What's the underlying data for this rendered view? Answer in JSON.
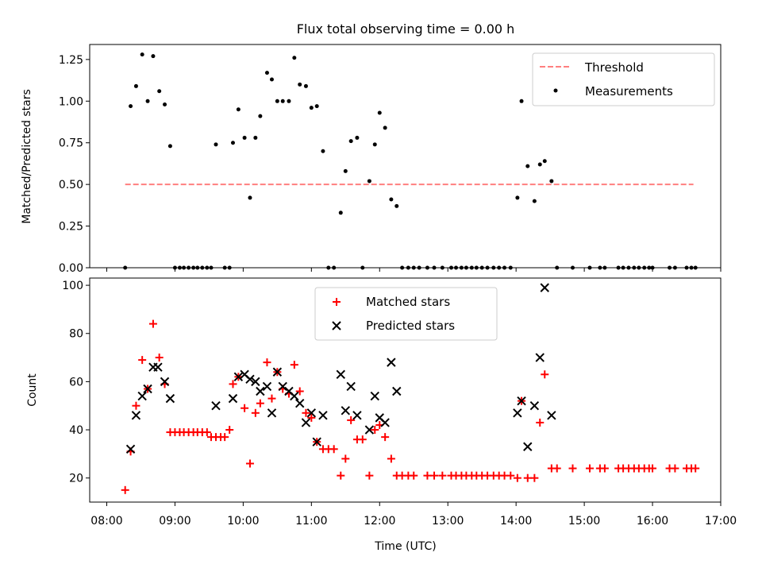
{
  "chart_data": [
    {
      "type": "scatter",
      "title": "Flux total observing time = 0.00 h",
      "xlabel": "",
      "ylabel": "Matched/Predicted stars",
      "xlim": [
        7.75,
        17.0
      ],
      "ylim": [
        0.0,
        1.34
      ],
      "yticks": [
        0.0,
        0.25,
        0.5,
        0.75,
        1.0,
        1.25
      ],
      "ytick_labels": [
        "0.00",
        "0.25",
        "0.50",
        "0.75",
        "1.00",
        "1.25"
      ],
      "legend": {
        "position": "top-right",
        "threshold_label": "Threshold",
        "measurements_label": "Measurements"
      },
      "threshold": {
        "value": 0.5,
        "x_range": [
          8.27,
          16.6
        ],
        "color": "#ff7f7f"
      },
      "series": [
        {
          "name": "Measurements",
          "x": [
            8.27,
            8.35,
            8.43,
            8.52,
            8.6,
            8.68,
            8.77,
            8.85,
            8.93,
            9.0,
            9.07,
            9.13,
            9.2,
            9.27,
            9.33,
            9.4,
            9.47,
            9.53,
            9.6,
            9.73,
            9.8,
            9.85,
            9.93,
            10.02,
            10.1,
            10.18,
            10.25,
            10.35,
            10.42,
            10.5,
            10.58,
            10.67,
            10.75,
            10.83,
            10.92,
            11.0,
            11.08,
            11.17,
            11.25,
            11.33,
            11.43,
            11.5,
            11.58,
            11.67,
            11.75,
            11.85,
            11.93,
            12.0,
            12.08,
            12.17,
            12.25,
            12.33,
            12.42,
            12.5,
            12.58,
            12.7,
            12.8,
            12.92,
            13.05,
            13.12,
            13.2,
            13.27,
            13.35,
            13.42,
            13.5,
            13.58,
            13.67,
            13.75,
            13.83,
            13.92,
            14.02,
            14.08,
            14.17,
            14.27,
            14.35,
            14.42,
            14.52,
            14.6,
            14.83,
            15.08,
            15.23,
            15.3,
            15.5,
            15.57,
            15.65,
            15.73,
            15.8,
            15.88,
            15.95,
            16.0,
            16.25,
            16.33,
            16.5,
            16.57,
            16.63
          ],
          "y": [
            0.0,
            0.97,
            1.09,
            1.28,
            1.0,
            1.27,
            1.06,
            0.98,
            0.73,
            0.0,
            0.0,
            0.0,
            0.0,
            0.0,
            0.0,
            0.0,
            0.0,
            0.0,
            0.74,
            0.0,
            0.0,
            0.75,
            0.95,
            0.78,
            0.42,
            0.78,
            0.91,
            1.17,
            1.13,
            1.0,
            1.0,
            1.0,
            1.26,
            1.1,
            1.09,
            0.96,
            0.97,
            0.7,
            0.0,
            0.0,
            0.33,
            0.58,
            0.76,
            0.78,
            0.0,
            0.52,
            0.74,
            0.93,
            0.84,
            0.41,
            0.37,
            0.0,
            0.0,
            0.0,
            0.0,
            0.0,
            0.0,
            0.0,
            0.0,
            0.0,
            0.0,
            0.0,
            0.0,
            0.0,
            0.0,
            0.0,
            0.0,
            0.0,
            0.0,
            0.0,
            0.42,
            1.0,
            0.61,
            0.4,
            0.62,
            0.64,
            0.52,
            0.0,
            0.0,
            0.0,
            0.0,
            0.0,
            0.0,
            0.0,
            0.0,
            0.0,
            0.0,
            0.0,
            0.0,
            0.0,
            0.0,
            0.0,
            0.0,
            0.0,
            0.0
          ],
          "color": "#000000"
        }
      ]
    },
    {
      "type": "scatter",
      "title": "",
      "xlabel": "Time (UTC)",
      "ylabel": "Count",
      "xlim": [
        7.75,
        17.0
      ],
      "ylim": [
        10,
        103
      ],
      "xticks": [
        8,
        9,
        10,
        11,
        12,
        13,
        14,
        15,
        16,
        17
      ],
      "xtick_labels": [
        "08:00",
        "09:00",
        "10:00",
        "11:00",
        "12:00",
        "13:00",
        "14:00",
        "15:00",
        "16:00",
        "17:00"
      ],
      "yticks": [
        20,
        40,
        60,
        80,
        100
      ],
      "ytick_labels": [
        "20",
        "40",
        "60",
        "80",
        "100"
      ],
      "legend": {
        "position": "top-center"
      },
      "series": [
        {
          "name": "Matched stars",
          "marker": "plus",
          "color": "#ff0000",
          "x": [
            8.27,
            8.35,
            8.43,
            8.52,
            8.6,
            8.68,
            8.77,
            8.85,
            8.93,
            9.0,
            9.07,
            9.13,
            9.2,
            9.27,
            9.33,
            9.4,
            9.47,
            9.53,
            9.6,
            9.67,
            9.73,
            9.8,
            9.85,
            9.93,
            10.02,
            10.1,
            10.18,
            10.25,
            10.35,
            10.42,
            10.5,
            10.58,
            10.67,
            10.75,
            10.83,
            10.92,
            11.0,
            11.08,
            11.17,
            11.25,
            11.33,
            11.43,
            11.5,
            11.58,
            11.67,
            11.75,
            11.85,
            11.93,
            12.0,
            12.08,
            12.17,
            12.25,
            12.33,
            12.42,
            12.5,
            12.7,
            12.8,
            12.92,
            13.05,
            13.12,
            13.2,
            13.27,
            13.35,
            13.42,
            13.5,
            13.58,
            13.67,
            13.75,
            13.83,
            13.92,
            14.02,
            14.08,
            14.17,
            14.27,
            14.35,
            14.42,
            14.52,
            14.6,
            14.83,
            15.08,
            15.23,
            15.3,
            15.5,
            15.57,
            15.65,
            15.73,
            15.8,
            15.88,
            15.95,
            16.0,
            16.25,
            16.33,
            16.5,
            16.57,
            16.63
          ],
          "y": [
            15,
            31,
            50,
            69,
            57,
            84,
            70,
            59,
            39,
            39,
            39,
            39,
            39,
            39,
            39,
            39,
            39,
            37,
            37,
            37,
            37,
            40,
            59,
            62,
            49,
            26,
            47,
            51,
            68,
            53,
            64,
            57,
            55,
            67,
            56,
            47,
            45,
            35,
            32,
            32,
            32,
            21,
            28,
            44,
            36,
            36,
            21,
            40,
            42,
            37,
            28,
            21,
            21,
            21,
            21,
            21,
            21,
            21,
            21,
            21,
            21,
            21,
            21,
            21,
            21,
            21,
            21,
            21,
            21,
            21,
            20,
            52,
            20,
            20,
            43,
            63,
            24,
            24,
            24,
            24,
            24,
            24,
            24,
            24,
            24,
            24,
            24,
            24,
            24,
            24,
            24,
            24,
            24,
            24,
            24
          ]
        },
        {
          "name": "Predicted stars",
          "marker": "x",
          "color": "#000000",
          "x": [
            8.35,
            8.43,
            8.52,
            8.6,
            8.68,
            8.75,
            8.85,
            8.93,
            9.6,
            9.85,
            9.93,
            10.02,
            10.1,
            10.18,
            10.25,
            10.35,
            10.42,
            10.5,
            10.58,
            10.67,
            10.75,
            10.83,
            10.92,
            11.0,
            11.08,
            11.17,
            11.43,
            11.5,
            11.58,
            11.67,
            11.85,
            11.93,
            12.0,
            12.08,
            12.17,
            12.25,
            14.02,
            14.08,
            14.17,
            14.27,
            14.35,
            14.42,
            14.52
          ],
          "y": [
            32,
            46,
            54,
            57,
            66,
            66,
            60,
            53,
            50,
            53,
            62,
            63,
            61,
            60,
            56,
            58,
            47,
            64,
            58,
            56,
            54,
            51,
            43,
            47,
            35,
            46,
            63,
            48,
            58,
            46,
            40,
            54,
            45,
            43,
            68,
            56,
            47,
            52,
            33,
            50,
            70,
            99,
            46
          ]
        }
      ]
    }
  ]
}
